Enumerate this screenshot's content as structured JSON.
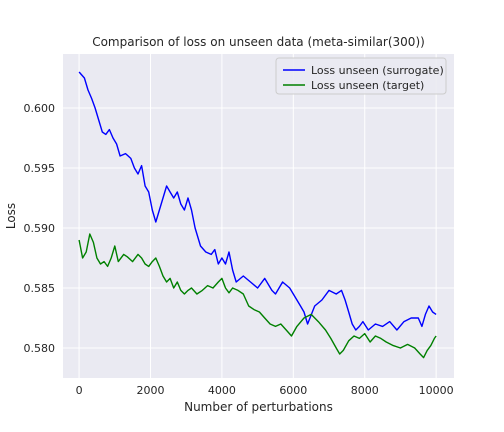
{
  "chart_data": {
    "type": "line",
    "title": "Comparison of loss on unseen data (meta-similar(300))",
    "xlabel": "Number of perturbations",
    "ylabel": "Loss",
    "xlim": [
      -450,
      10500
    ],
    "ylim": [
      0.5775,
      0.6045
    ],
    "x_ticks": [
      0,
      2000,
      4000,
      6000,
      8000,
      10000
    ],
    "y_ticks": [
      0.58,
      0.585,
      0.59,
      0.595,
      0.6
    ],
    "y_tick_labels": [
      "0.580",
      "0.585",
      "0.590",
      "0.595",
      "0.600"
    ],
    "grid": true,
    "legend_position": "upper right",
    "background": "#eaeaf2",
    "series": [
      {
        "name": "Loss unseen (surrogate)",
        "color": "#0000ff",
        "x": [
          0,
          150,
          250,
          350,
          450,
          550,
          650,
          750,
          850,
          950,
          1050,
          1150,
          1300,
          1450,
          1550,
          1650,
          1750,
          1850,
          1950,
          2050,
          2150,
          2250,
          2350,
          2450,
          2550,
          2650,
          2750,
          2850,
          2950,
          3050,
          3150,
          3250,
          3400,
          3550,
          3700,
          3800,
          3900,
          4000,
          4100,
          4200,
          4300,
          4400,
          4600,
          4800,
          5000,
          5200,
          5400,
          5500,
          5700,
          5900,
          6100,
          6200,
          6300,
          6400,
          6600,
          6800,
          7000,
          7200,
          7350,
          7450,
          7550,
          7650,
          7750,
          7850,
          7950,
          8100,
          8300,
          8500,
          8700,
          8900,
          9100,
          9300,
          9500,
          9600,
          9700,
          9800,
          9900,
          10000
        ],
        "y": [
          0.603,
          0.6025,
          0.6015,
          0.6008,
          0.6,
          0.599,
          0.598,
          0.5978,
          0.5982,
          0.5975,
          0.597,
          0.596,
          0.5962,
          0.5958,
          0.595,
          0.5945,
          0.5952,
          0.5935,
          0.593,
          0.5915,
          0.5905,
          0.5915,
          0.5925,
          0.5935,
          0.593,
          0.5925,
          0.593,
          0.592,
          0.5915,
          0.5925,
          0.5915,
          0.59,
          0.5885,
          0.588,
          0.5878,
          0.5882,
          0.587,
          0.5875,
          0.587,
          0.588,
          0.5865,
          0.5855,
          0.586,
          0.5855,
          0.585,
          0.5858,
          0.5848,
          0.5845,
          0.5855,
          0.585,
          0.584,
          0.5835,
          0.583,
          0.582,
          0.5835,
          0.584,
          0.5848,
          0.5845,
          0.5848,
          0.584,
          0.583,
          0.582,
          0.5815,
          0.5818,
          0.5822,
          0.5815,
          0.582,
          0.5818,
          0.5822,
          0.5815,
          0.5822,
          0.5825,
          0.5825,
          0.5818,
          0.5828,
          0.5835,
          0.583,
          0.5828
        ]
      },
      {
        "name": "Loss unseen (target)",
        "color": "#008000",
        "x": [
          0,
          100,
          200,
          300,
          400,
          500,
          600,
          700,
          800,
          900,
          1000,
          1100,
          1250,
          1350,
          1500,
          1650,
          1750,
          1850,
          1950,
          2050,
          2150,
          2250,
          2350,
          2450,
          2550,
          2650,
          2750,
          2850,
          2950,
          3050,
          3150,
          3300,
          3450,
          3600,
          3750,
          3900,
          4000,
          4100,
          4200,
          4300,
          4450,
          4600,
          4750,
          4900,
          5050,
          5200,
          5350,
          5500,
          5650,
          5800,
          5950,
          6100,
          6300,
          6500,
          6700,
          6900,
          7050,
          7200,
          7300,
          7400,
          7550,
          7700,
          7850,
          8000,
          8150,
          8300,
          8450,
          8600,
          8800,
          9000,
          9200,
          9400,
          9550,
          9650,
          9750,
          9850,
          9950,
          10000
        ],
        "y": [
          0.589,
          0.5875,
          0.588,
          0.5895,
          0.5888,
          0.5875,
          0.587,
          0.5872,
          0.5868,
          0.5875,
          0.5885,
          0.5872,
          0.5878,
          0.5876,
          0.5872,
          0.5878,
          0.5875,
          0.587,
          0.5868,
          0.5872,
          0.5875,
          0.5868,
          0.586,
          0.5855,
          0.5858,
          0.585,
          0.5855,
          0.5848,
          0.5845,
          0.5848,
          0.585,
          0.5845,
          0.5848,
          0.5852,
          0.585,
          0.5855,
          0.5858,
          0.585,
          0.5846,
          0.585,
          0.5848,
          0.5845,
          0.5835,
          0.5832,
          0.583,
          0.5825,
          0.582,
          0.5818,
          0.582,
          0.5815,
          0.581,
          0.5818,
          0.5825,
          0.5828,
          0.5822,
          0.5815,
          0.5808,
          0.58,
          0.5795,
          0.5798,
          0.5806,
          0.581,
          0.5808,
          0.5812,
          0.5805,
          0.581,
          0.5808,
          0.5805,
          0.5802,
          0.58,
          0.5803,
          0.58,
          0.5795,
          0.5792,
          0.5798,
          0.5802,
          0.5808,
          0.581
        ]
      }
    ]
  }
}
